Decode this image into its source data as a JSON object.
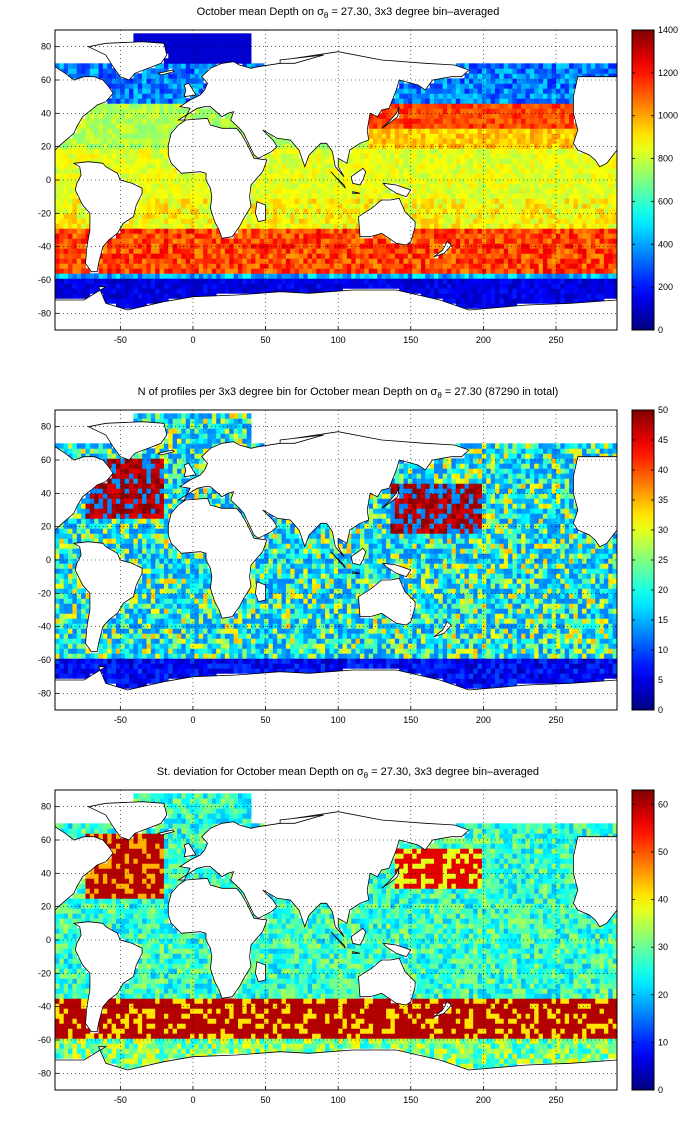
{
  "panels": [
    {
      "title_pre": "October mean Depth on σ",
      "title_sub": "θ",
      "title_post": " = 27.30, 3x3 degree bin–averaged",
      "field": "mean_depth",
      "colorbar_ticks": [
        "0",
        "200",
        "400",
        "600",
        "800",
        "1000",
        "1200",
        "1400"
      ],
      "colorbar_range": [
        0,
        1400
      ]
    },
    {
      "title_pre": "N of profiles per 3x3 degree bin for October mean Depth on σ",
      "title_sub": "θ",
      "title_post": " = 27.30 (87290 in total)",
      "field": "profile_count",
      "colorbar_ticks": [
        "0",
        "5",
        "10",
        "15",
        "20",
        "25",
        "30",
        "35",
        "40",
        "45",
        "50"
      ],
      "colorbar_range": [
        0,
        50
      ]
    },
    {
      "title_pre": "St. deviation for October mean Depth on σ",
      "title_sub": "θ",
      "title_post": " = 27.30, 3x3 degree bin–averaged",
      "field": "std_dev",
      "colorbar_ticks": [
        "0",
        "10",
        "20",
        "30",
        "40",
        "50",
        "60"
      ],
      "colorbar_range": [
        0,
        63
      ]
    }
  ],
  "map": {
    "xticks": [
      "-50",
      "0",
      "50",
      "100",
      "150",
      "200",
      "250"
    ],
    "yticks": [
      "80",
      "60",
      "40",
      "20",
      "0",
      "-20",
      "-40",
      "-60",
      "-80"
    ],
    "lon_range": [
      -95,
      292
    ],
    "lat_range": [
      -90,
      90
    ],
    "colormap": "jet",
    "land_color": "#ffffff",
    "grid": "dotted"
  }
}
